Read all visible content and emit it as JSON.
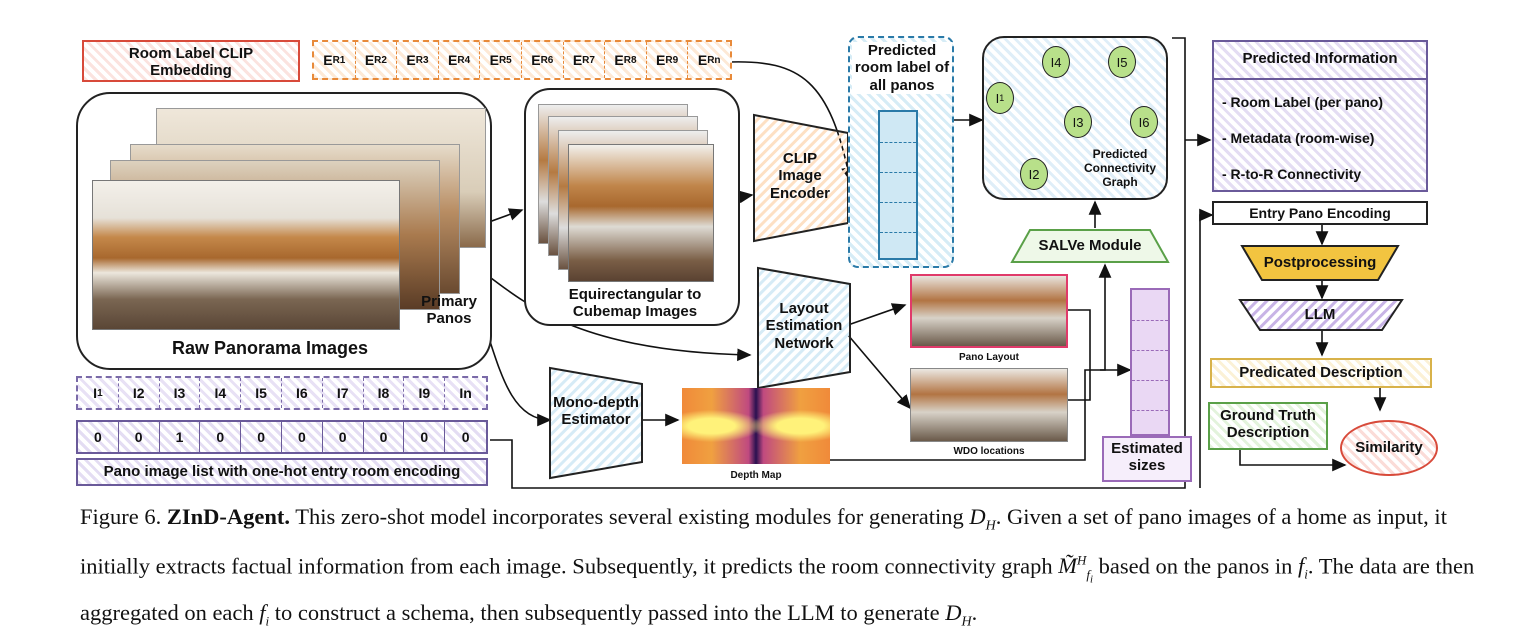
{
  "colors": {
    "red": "#d84a3a",
    "orange": "#e88a3a",
    "purple": "#6a5a9a",
    "blue": "#3a7aaa",
    "green": "#5aa048",
    "yellow": "#d8b24a",
    "node_fill": "#b8e08a"
  },
  "clip_embedding": {
    "label": "Room Label CLIP Embedding"
  },
  "embedding_row": {
    "cells": [
      "E",
      "E",
      "E",
      "E",
      "E",
      "E",
      "E",
      "E",
      "E",
      "E"
    ],
    "subs": [
      "R1",
      "R2",
      "R3",
      "R4",
      "R5",
      "R6",
      "R7",
      "R8",
      "R9",
      "Rn"
    ]
  },
  "raw_panorama": {
    "label": "Raw Panorama Images",
    "primary_panos": "Primary Panos"
  },
  "cubemap": {
    "label": "Equirectangular to Cubemap Images"
  },
  "clip_encoder": {
    "label": "CLIP Image Encoder"
  },
  "predicted_room_label": {
    "label": "Predicted room label of all panos"
  },
  "connectivity_graph": {
    "label": "Predicted Connectivity Graph",
    "nodes": [
      {
        "name": "I",
        "sub": "1"
      },
      {
        "name": "I4",
        "sub": ""
      },
      {
        "name": "I5",
        "sub": ""
      },
      {
        "name": "I3",
        "sub": ""
      },
      {
        "name": "I6",
        "sub": ""
      },
      {
        "name": "I2",
        "sub": ""
      }
    ]
  },
  "salve": {
    "label": "SALVe Module"
  },
  "layout_network": {
    "label": "Layout Estimation Network"
  },
  "pano_layout": {
    "label": "Pano Layout"
  },
  "wdo": {
    "label": "WDO locations"
  },
  "mono_depth": {
    "label": "Mono-depth Estimator"
  },
  "depth_map": {
    "label": "Depth Map"
  },
  "estimated_sizes": {
    "label": "Estimated sizes"
  },
  "image_list": {
    "cells": [
      "I",
      "I2",
      "I3",
      "I4",
      "I5",
      "I6",
      "I7",
      "I8",
      "I9",
      "In"
    ],
    "first_sub": "1",
    "onehot": [
      "0",
      "0",
      "1",
      "0",
      "0",
      "0",
      "0",
      "0",
      "0",
      "0"
    ],
    "label": "Pano image list with one-hot entry room encoding"
  },
  "predicted_info": {
    "title": "Predicted Information",
    "items": [
      "- Room Label (per pano)",
      "- Metadata (room-wise)",
      "- R-to-R Connectivity"
    ]
  },
  "entry_pano": {
    "label": "Entry Pano Encoding"
  },
  "postprocessing": {
    "label": "Postprocessing"
  },
  "llm": {
    "label": "LLM"
  },
  "predicated_description": {
    "label": "Predicated Description"
  },
  "ground_truth": {
    "label": "Ground Truth Description"
  },
  "similarity": {
    "label": "Similarity"
  },
  "caption": {
    "fig": "Figure 6.",
    "title": "ZInD-Agent.",
    "text1": " This zero-shot model incorporates several existing modules for generating ",
    "dh1": "D",
    "text2": ". Given a set of pano images of a home as input, it initially extracts factual information from each image. Subsequently, it predicts the room connectivity graph ",
    "text3": " based on the panos in ",
    "text4": ". The data are then aggregated on each ",
    "text5": " to construct a schema, then subsequently passed into the LLM to generate ",
    "text6": "."
  }
}
